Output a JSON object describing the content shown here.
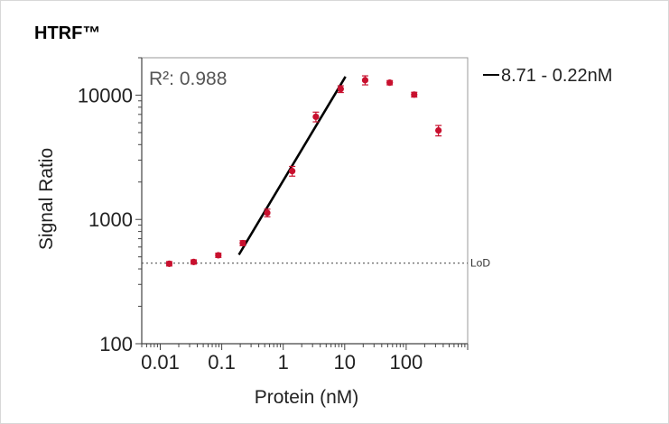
{
  "page": {
    "title": "HTRF™"
  },
  "chart_data": {
    "type": "scatter",
    "xlabel": "Protein (nM)",
    "ylabel": "Signal Ratio",
    "x_scale": "log",
    "y_scale": "log",
    "xlim": [
      0.005,
      1000
    ],
    "ylim": [
      100,
      20000
    ],
    "x_ticks": [
      0.01,
      0.1,
      1,
      10,
      100
    ],
    "x_tick_labels": [
      "0.01",
      "0.1",
      "1",
      "10",
      "100"
    ],
    "y_ticks": [
      100,
      1000,
      10000
    ],
    "y_tick_labels": [
      "100",
      "1000",
      "10000"
    ],
    "series": [
      {
        "points": [
          {
            "x": 0.014,
            "y": 440,
            "err": 18
          },
          {
            "x": 0.035,
            "y": 455,
            "err": 18
          },
          {
            "x": 0.088,
            "y": 515,
            "err": 20
          },
          {
            "x": 0.22,
            "y": 645,
            "err": 30
          },
          {
            "x": 0.55,
            "y": 1130,
            "err": 80
          },
          {
            "x": 1.4,
            "y": 2450,
            "err": 220
          },
          {
            "x": 3.4,
            "y": 6700,
            "err": 600
          },
          {
            "x": 8.6,
            "y": 11200,
            "err": 700
          },
          {
            "x": 21.5,
            "y": 13200,
            "err": 1100
          },
          {
            "x": 54,
            "y": 12600,
            "err": 500
          },
          {
            "x": 135,
            "y": 10100,
            "err": 450
          },
          {
            "x": 335,
            "y": 5200,
            "err": 500
          }
        ],
        "color": "#c8102e"
      }
    ],
    "fit_line": {
      "label": "8.71 - 0.22nM",
      "r2_text": "R²: 0.988",
      "x0": 0.19,
      "y0": 520,
      "x1": 10.3,
      "y1": 14100,
      "color": "#000000"
    },
    "threshold": {
      "label": "LoD",
      "y": 445,
      "style": "dotted"
    },
    "legend_position": "right"
  }
}
